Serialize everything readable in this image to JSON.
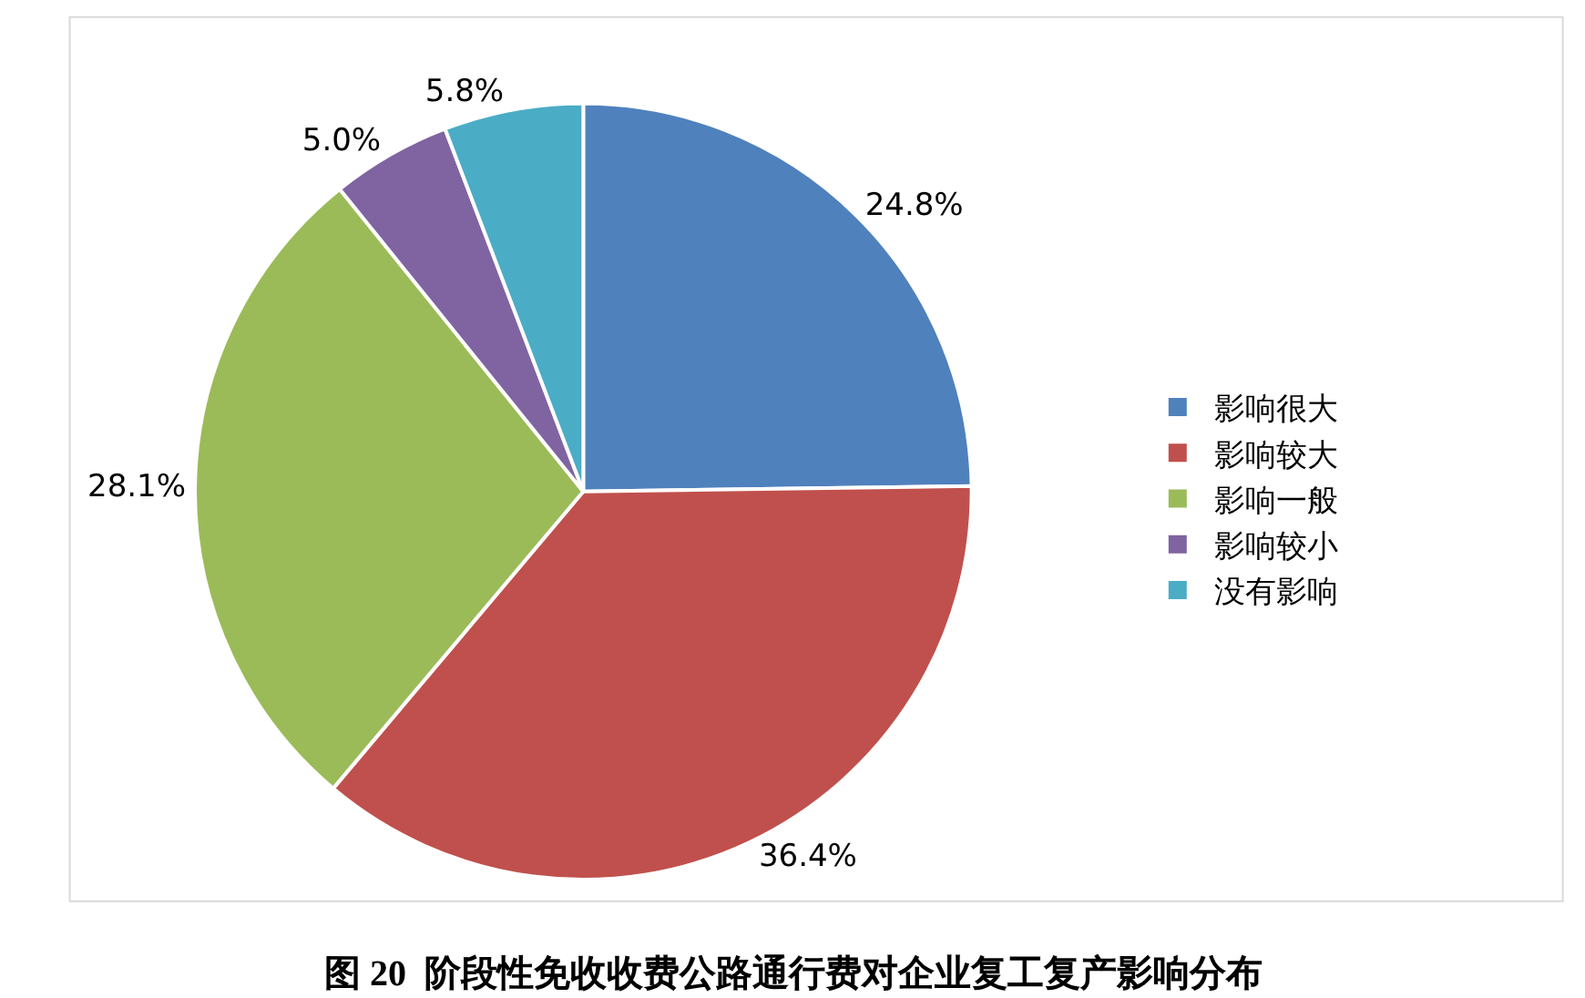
{
  "chart_data": {
    "type": "pie",
    "categories": [
      "影响很大",
      "影响较大",
      "影响一般",
      "影响较小",
      "没有影响"
    ],
    "values": [
      24.8,
      36.4,
      28.1,
      5.0,
      5.8
    ],
    "value_labels": [
      "24.8%",
      "36.4%",
      "28.1%",
      "5.0%",
      "5.8%"
    ],
    "colors": [
      "#4f81bd",
      "#c0504d",
      "#9bbb59",
      "#8064a2",
      "#4bacc6"
    ],
    "legend": "right",
    "annotations": [
      "图 20  阶段性免收收费公路通行费对企业复工复产影响分布"
    ]
  }
}
